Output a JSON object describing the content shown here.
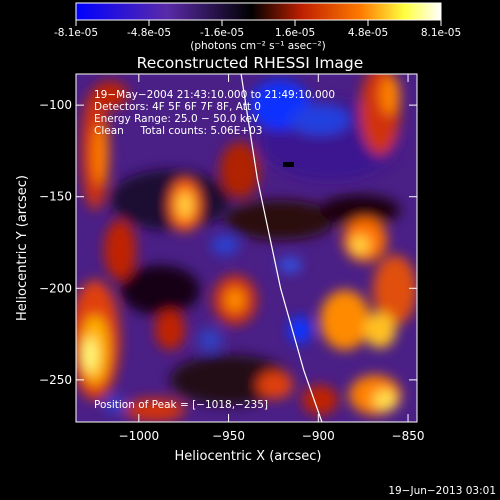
{
  "colorbar": {
    "ticks": [
      "-8.1e-05",
      "-4.8e-05",
      "-1.6e-05",
      "1.6e-05",
      "4.8e-05",
      "8.1e-05"
    ],
    "unit_label": "(photons cm⁻² s⁻¹ asec⁻²)",
    "colors": [
      "#0000ff",
      "#5a2aa8",
      "#000000",
      "#c02000",
      "#ff7a00",
      "#ffff40",
      "#ffffff"
    ]
  },
  "chart_data": {
    "type": "heatmap",
    "title": "Reconstructed RHESSI Image",
    "xlabel": "Heliocentric X (arcsec)",
    "ylabel": "Heliocentric Y (arcsec)",
    "xlim": [
      -1035,
      -845
    ],
    "ylim": [
      -273,
      -83
    ],
    "xticks": [
      -1000,
      -950,
      -900,
      -850
    ],
    "xtick_labels": [
      "−1000",
      "−950",
      "−900",
      "−850"
    ],
    "yticks": [
      -100,
      -150,
      -200,
      -250
    ],
    "ytick_labels": [
      "−100",
      "−150",
      "−200",
      "−250"
    ],
    "value_range": [
      -8.1e-05,
      8.1e-05
    ],
    "limb_curve": [
      [
        -943,
        -83
      ],
      [
        -934,
        -140
      ],
      [
        -921,
        -200
      ],
      [
        -908,
        -245
      ],
      [
        -898,
        -273
      ]
    ],
    "annotations": [
      "19−May−2004 21:43:10.000 to 21:49:10.000",
      "Detectors: 4F 5F 6F 7F 8F, Att 0",
      "Energy Range: 25.0 − 50.0 keV",
      "Clean     Total counts: 5.06E+03"
    ],
    "peak_label": "Position of Peak = [−1018,−235]",
    "peak_position": [
      -1018,
      -235
    ]
  },
  "timestamp": "19−Jun−2013 03:01"
}
